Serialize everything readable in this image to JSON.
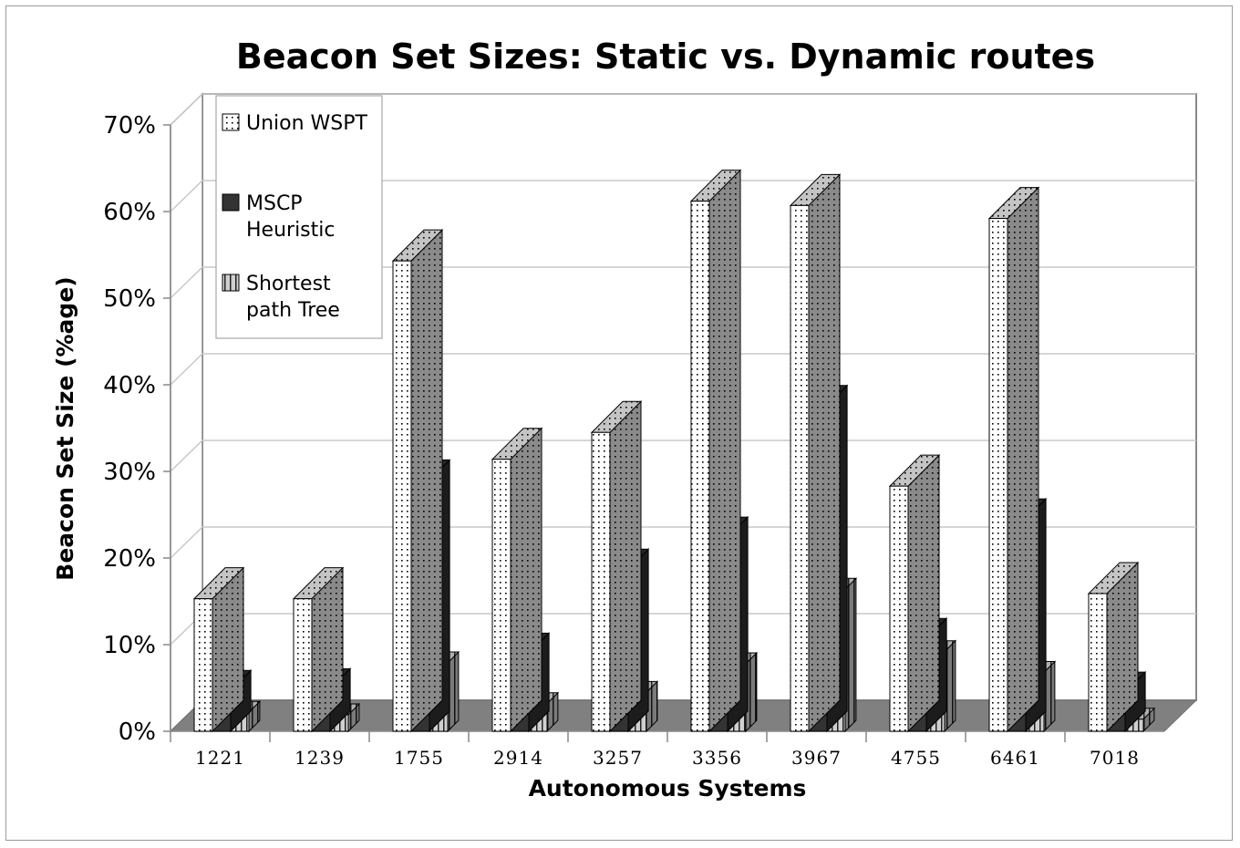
{
  "chart_data": {
    "type": "bar",
    "title": "Beacon Set Sizes: Static vs. Dynamic routes",
    "xlabel": "Autonomous Systems",
    "ylabel": "Beacon Set Size (%age)",
    "ylim": [
      0,
      70
    ],
    "yticks": [
      "0%",
      "10%",
      "20%",
      "30%",
      "40%",
      "50%",
      "60%",
      "70%"
    ],
    "grid": true,
    "legend_position": "top-left",
    "categories": [
      "1221",
      "1239",
      "1755",
      "2914",
      "3257",
      "3356",
      "3967",
      "4755",
      "6461",
      "7018"
    ],
    "series": [
      {
        "name": "Union WSPT",
        "values": [
          15.3,
          15.3,
          54.3,
          31.4,
          34.5,
          61.2,
          60.7,
          28.3,
          59.2,
          15.9
        ],
        "color": "#ffffff",
        "pattern": "dots"
      },
      {
        "name": "MSCP Heuristic",
        "values": [
          4.7,
          4.9,
          29.0,
          9.0,
          18.7,
          22.4,
          37.6,
          10.7,
          24.5,
          4.5
        ],
        "color": "#333333",
        "pattern": "solid"
      },
      {
        "name": "Shortest path Tree",
        "values": [
          2.2,
          1.9,
          7.9,
          3.2,
          4.5,
          7.8,
          16.4,
          9.2,
          6.8,
          1.4
        ],
        "color": "#d0d0d0",
        "pattern": "vertical-stripes"
      }
    ]
  }
}
